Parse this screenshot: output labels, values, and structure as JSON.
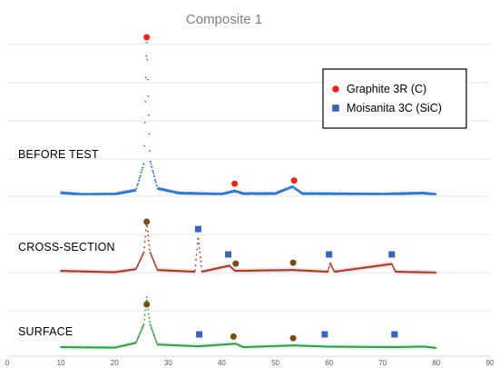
{
  "chart_data": {
    "type": "line",
    "title": "Composite 1",
    "xlim": [
      0,
      90
    ],
    "x_ticks": [
      "0",
      "10",
      "20",
      "30",
      "40",
      "50",
      "60",
      "70",
      "80",
      "90"
    ],
    "grid": true,
    "legend_position": "top-right",
    "legend": [
      {
        "label": "Graphite 3R (C)",
        "marker": "circle",
        "color": "#e8231b"
      },
      {
        "label": "Moisanita 3C (SiC)",
        "marker": "square",
        "color": "#3b63b8"
      }
    ],
    "series": [
      {
        "label": "BEFORE TEST",
        "color": "#2e75c6",
        "band_color": "#2e75c6",
        "baseline": 1.0,
        "peak_scale": 9.0,
        "points": [
          [
            10,
            0.1
          ],
          [
            14,
            0.0
          ],
          [
            20,
            0.02
          ],
          [
            24,
            0.25
          ],
          [
            25.5,
            1.8
          ],
          [
            26,
            9.0
          ],
          [
            26.6,
            2.0
          ],
          [
            28,
            0.35
          ],
          [
            32,
            0.08
          ],
          [
            40,
            0.02
          ],
          [
            42.4,
            0.2
          ],
          [
            44,
            0.05
          ],
          [
            50,
            0.05
          ],
          [
            53.2,
            0.45
          ],
          [
            55,
            0.05
          ],
          [
            70,
            0.02
          ],
          [
            77.5,
            0.08
          ],
          [
            80,
            0.0
          ]
        ],
        "markers": [
          {
            "x": 26,
            "kind": "graphite",
            "color": "#e8231b"
          },
          {
            "x": 42.4,
            "kind": "graphite",
            "color": "#e8231b"
          },
          {
            "x": 53.5,
            "kind": "graphite",
            "color": "#e8231b"
          }
        ]
      },
      {
        "label": "CROSS-SECTION",
        "color": "#a0401c",
        "band_color": "#e8c8ee",
        "baseline": 1.0,
        "peak_scale": 3.0,
        "points": [
          [
            10,
            0.1
          ],
          [
            20,
            0.02
          ],
          [
            24,
            0.2
          ],
          [
            25.5,
            1.2
          ],
          [
            26,
            3.0
          ],
          [
            26.6,
            1.2
          ],
          [
            28,
            0.15
          ],
          [
            35,
            0.05
          ],
          [
            35.6,
            2.1
          ],
          [
            36.3,
            0.05
          ],
          [
            41.4,
            0.4
          ],
          [
            42.5,
            0.1
          ],
          [
            53.3,
            0.15
          ],
          [
            59.8,
            0.05
          ],
          [
            60.2,
            0.55
          ],
          [
            61,
            0.05
          ],
          [
            71.7,
            0.5
          ],
          [
            72.4,
            0.05
          ],
          [
            80,
            0.0
          ]
        ],
        "markers": [
          {
            "x": 26,
            "kind": "graphite",
            "color": "#7a4a17"
          },
          {
            "x": 35.6,
            "kind": "sic",
            "color": "#3b63b8"
          },
          {
            "x": 41.2,
            "kind": "sic",
            "color": "#3b63b8"
          },
          {
            "x": 42.6,
            "kind": "graphite",
            "color": "#7a4a17"
          },
          {
            "x": 53.3,
            "kind": "graphite",
            "color": "#7a4a17"
          },
          {
            "x": 60,
            "kind": "sic",
            "color": "#3b63b8"
          },
          {
            "x": 71.7,
            "kind": "sic",
            "color": "#3b63b8"
          }
        ]
      },
      {
        "label": "SURFACE",
        "color": "#3e9a45",
        "band_color": "#c7efe0",
        "baseline": 1.0,
        "peak_scale": 3.0,
        "points": [
          [
            10,
            0.05
          ],
          [
            20,
            0.02
          ],
          [
            24,
            0.3
          ],
          [
            25.5,
            1.4
          ],
          [
            26,
            3.0
          ],
          [
            26.6,
            1.4
          ],
          [
            28,
            0.2
          ],
          [
            35.6,
            0.1
          ],
          [
            42.6,
            0.25
          ],
          [
            44,
            0.05
          ],
          [
            53.4,
            0.15
          ],
          [
            59.8,
            0.08
          ],
          [
            72,
            0.05
          ],
          [
            77.8,
            0.08
          ],
          [
            80,
            0.0
          ]
        ],
        "markers": [
          {
            "x": 26,
            "kind": "graphite",
            "color": "#7a4a17"
          },
          {
            "x": 35.8,
            "kind": "sic",
            "color": "#3b63b8"
          },
          {
            "x": 42.2,
            "kind": "graphite",
            "color": "#7a4a17"
          },
          {
            "x": 53.3,
            "kind": "graphite",
            "color": "#7a4a17"
          },
          {
            "x": 59.2,
            "kind": "sic",
            "color": "#3b63b8"
          },
          {
            "x": 72.2,
            "kind": "sic",
            "color": "#3b63b8"
          }
        ]
      }
    ]
  }
}
